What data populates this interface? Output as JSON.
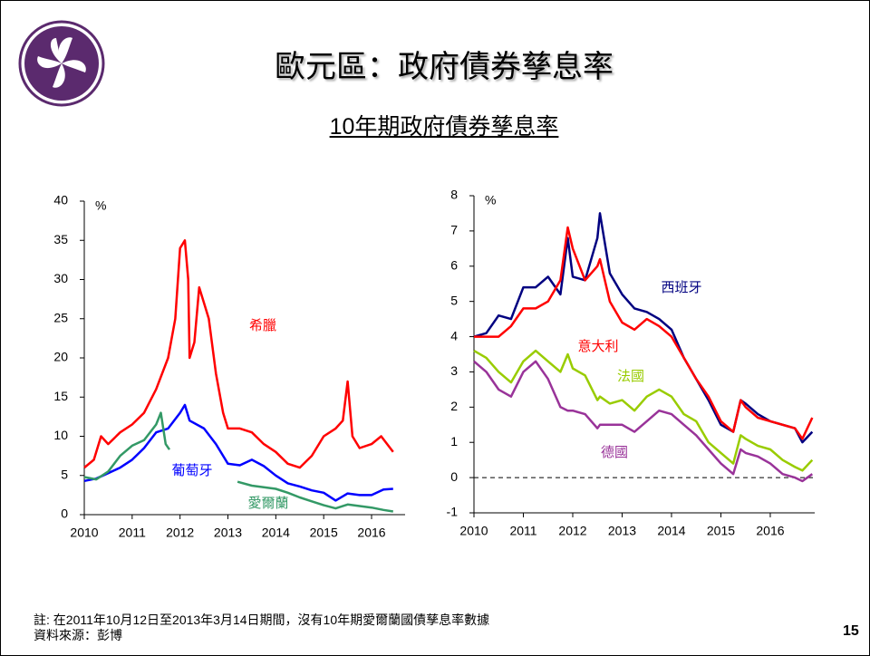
{
  "slide": {
    "title": "歐元區：政府債券孳息率",
    "subtitle": "10年期政府債券孳息率",
    "footnote": "註: 在2011年10月12日至2013年3月14日期間，沒有10年期愛爾蘭國債孳息率數據",
    "source": "資料來源：彭博",
    "page_number": "15"
  },
  "chart_data": [
    {
      "type": "line",
      "y_label": "%",
      "xlim": [
        2010,
        2016.7
      ],
      "xticks": [
        2010,
        2011,
        2012,
        2013,
        2014,
        2015,
        2016
      ],
      "ylim": [
        0,
        40
      ],
      "yticks": [
        0,
        5,
        10,
        15,
        20,
        25,
        30,
        35,
        40
      ],
      "series": [
        {
          "name": "希臘",
          "color": "#ff0000",
          "x": [
            2010,
            2010.2,
            2010.35,
            2010.5,
            2010.75,
            2011,
            2011.25,
            2011.5,
            2011.75,
            2011.9,
            2012,
            2012.1,
            2012.17,
            2012.2,
            2012.3,
            2012.4,
            2012.5,
            2012.6,
            2012.75,
            2012.9,
            2013,
            2013.25,
            2013.5,
            2013.75,
            2014,
            2014.25,
            2014.5,
            2014.75,
            2015,
            2015.25,
            2015.4,
            2015.5,
            2015.6,
            2015.75,
            2016,
            2016.2,
            2016.45
          ],
          "values": [
            6,
            7,
            10,
            9,
            10.5,
            11.5,
            13,
            16,
            20,
            25,
            34,
            35,
            30,
            20,
            22,
            29,
            27,
            25,
            18,
            13,
            11,
            11,
            10.5,
            9,
            8,
            6.5,
            6,
            7.5,
            10,
            11,
            12,
            17,
            10,
            8.5,
            9,
            10,
            8
          ]
        },
        {
          "name": "葡萄牙",
          "color": "#0000ff",
          "x": [
            2010,
            2010.25,
            2010.5,
            2010.75,
            2011,
            2011.25,
            2011.5,
            2011.75,
            2012,
            2012.1,
            2012.2,
            2012.5,
            2012.75,
            2013,
            2013.25,
            2013.5,
            2013.75,
            2014,
            2014.25,
            2014.5,
            2014.75,
            2015,
            2015.25,
            2015.5,
            2015.75,
            2016,
            2016.25,
            2016.45
          ],
          "values": [
            4.3,
            4.6,
            5.3,
            6,
            7,
            8.5,
            10.5,
            11,
            13,
            14,
            12,
            11,
            9,
            6.5,
            6.3,
            7,
            6.2,
            5,
            4,
            3.6,
            3.1,
            2.8,
            1.8,
            2.7,
            2.5,
            2.5,
            3.2,
            3.3
          ]
        },
        {
          "name": "愛爾蘭",
          "color": "#339966",
          "x": [
            2010,
            2010.25,
            2010.5,
            2010.75,
            2011,
            2011.25,
            2011.5,
            2011.6,
            2011.7,
            2011.78,
            2012.5,
            2013.2,
            2013.5,
            2013.75,
            2014,
            2014.25,
            2014.5,
            2014.75,
            2015,
            2015.25,
            2015.5,
            2015.75,
            2016,
            2016.25,
            2016.45
          ],
          "values": [
            4.8,
            4.5,
            5.5,
            7.5,
            8.8,
            9.5,
            11.5,
            13,
            9,
            8.3,
            null,
            4.2,
            3.7,
            3.5,
            3.3,
            2.8,
            2.2,
            1.7,
            1.2,
            0.8,
            1.3,
            1.1,
            0.9,
            0.6,
            0.4
          ]
        }
      ]
    },
    {
      "type": "line",
      "y_label": "%",
      "zero_line": true,
      "xlim": [
        2010,
        2016.9
      ],
      "xticks": [
        2010,
        2011,
        2012,
        2013,
        2014,
        2015,
        2016
      ],
      "ylim": [
        -1,
        8
      ],
      "yticks": [
        -1,
        0,
        1,
        2,
        3,
        4,
        5,
        6,
        7,
        8
      ],
      "x": [
        2010,
        2010.25,
        2010.5,
        2010.75,
        2011,
        2011.25,
        2011.5,
        2011.75,
        2011.9,
        2012,
        2012.25,
        2012.5,
        2012.55,
        2012.75,
        2013,
        2013.25,
        2013.5,
        2013.75,
        2014,
        2014.25,
        2014.5,
        2014.75,
        2015,
        2015.25,
        2015.4,
        2015.5,
        2015.75,
        2016,
        2016.25,
        2016.5,
        2016.65,
        2016.85
      ],
      "series": [
        {
          "name": "西班牙",
          "color": "#000080",
          "values": [
            4.0,
            4.1,
            4.6,
            4.5,
            5.4,
            5.4,
            5.7,
            5.2,
            6.8,
            5.7,
            5.6,
            6.8,
            7.5,
            5.8,
            5.2,
            4.8,
            4.7,
            4.5,
            4.2,
            3.4,
            2.8,
            2.2,
            1.5,
            1.3,
            2.2,
            2.1,
            1.8,
            1.6,
            1.5,
            1.4,
            1.0,
            1.3
          ]
        },
        {
          "name": "意大利",
          "color": "#ff0000",
          "values": [
            4.0,
            4.0,
            4.0,
            4.3,
            4.8,
            4.8,
            5.0,
            5.6,
            7.1,
            6.5,
            5.6,
            6.0,
            6.2,
            5.0,
            4.4,
            4.2,
            4.5,
            4.3,
            4.0,
            3.4,
            2.8,
            2.3,
            1.6,
            1.3,
            2.2,
            2.0,
            1.7,
            1.6,
            1.5,
            1.4,
            1.1,
            1.7
          ]
        },
        {
          "name": "法國",
          "color": "#99cc00",
          "values": [
            3.6,
            3.4,
            3.0,
            2.7,
            3.3,
            3.6,
            3.3,
            3.0,
            3.5,
            3.1,
            2.9,
            2.2,
            2.3,
            2.1,
            2.2,
            1.9,
            2.3,
            2.5,
            2.3,
            1.8,
            1.6,
            1.0,
            0.7,
            0.4,
            1.2,
            1.1,
            0.9,
            0.8,
            0.5,
            0.3,
            0.2,
            0.5
          ]
        },
        {
          "name": "德國",
          "color": "#993399",
          "values": [
            3.3,
            3.0,
            2.5,
            2.3,
            3.0,
            3.3,
            2.8,
            2.0,
            1.9,
            1.9,
            1.8,
            1.4,
            1.5,
            1.5,
            1.5,
            1.3,
            1.6,
            1.9,
            1.8,
            1.5,
            1.2,
            0.8,
            0.4,
            0.1,
            0.8,
            0.7,
            0.6,
            0.4,
            0.1,
            0.0,
            -0.1,
            0.1
          ]
        }
      ]
    }
  ]
}
